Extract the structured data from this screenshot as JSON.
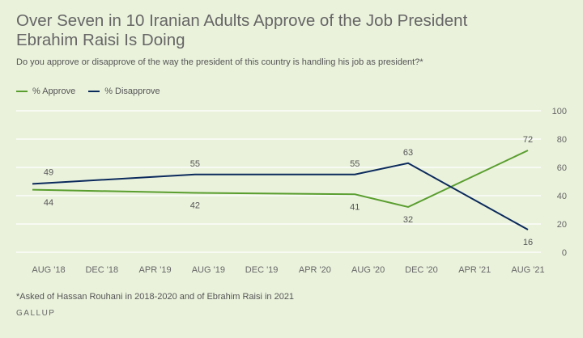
{
  "title": "Over Seven in 10 Iranian Adults Approve of the Job President Ebrahim Raisi Is Doing",
  "subtitle": "Do you approve or disapprove of the way the president of this country is handling his job as president?*",
  "footnote": "*Asked of Hassan Rouhani in 2018-2020 and of Ebrahim Raisi in 2021",
  "brand": "GALLUP",
  "colors": {
    "approve": "#5a9e2f",
    "disapprove": "#0b2a5c",
    "background": "#eaf2dc"
  },
  "chart_data": {
    "type": "line",
    "title": "Over Seven in 10 Iranian Adults Approve of the Job President Ebrahim Raisi Is Doing",
    "x_ticks": [
      "AUG '18",
      "DEC '18",
      "APR '19",
      "AUG '19",
      "DEC '19",
      "APR '20",
      "AUG '20",
      "DEC '20",
      "APR '21",
      "AUG '21"
    ],
    "x": [
      "2018-08",
      "2019-07",
      "2020-07",
      "2020-11",
      "2021-08"
    ],
    "series": [
      {
        "name": "% Approve",
        "values": [
          44,
          42,
          41,
          32,
          72
        ],
        "label_position": [
          "below",
          "below",
          "below",
          "below",
          "above"
        ]
      },
      {
        "name": "% Disapprove",
        "values": [
          49,
          55,
          55,
          63,
          16
        ],
        "label_position": [
          "above",
          "above",
          "above",
          "above",
          "below"
        ]
      }
    ],
    "y_ticks": [
      0,
      20,
      40,
      60,
      80,
      100
    ],
    "ylim": [
      0,
      100
    ],
    "grid": true,
    "legend_position": "top-left"
  }
}
